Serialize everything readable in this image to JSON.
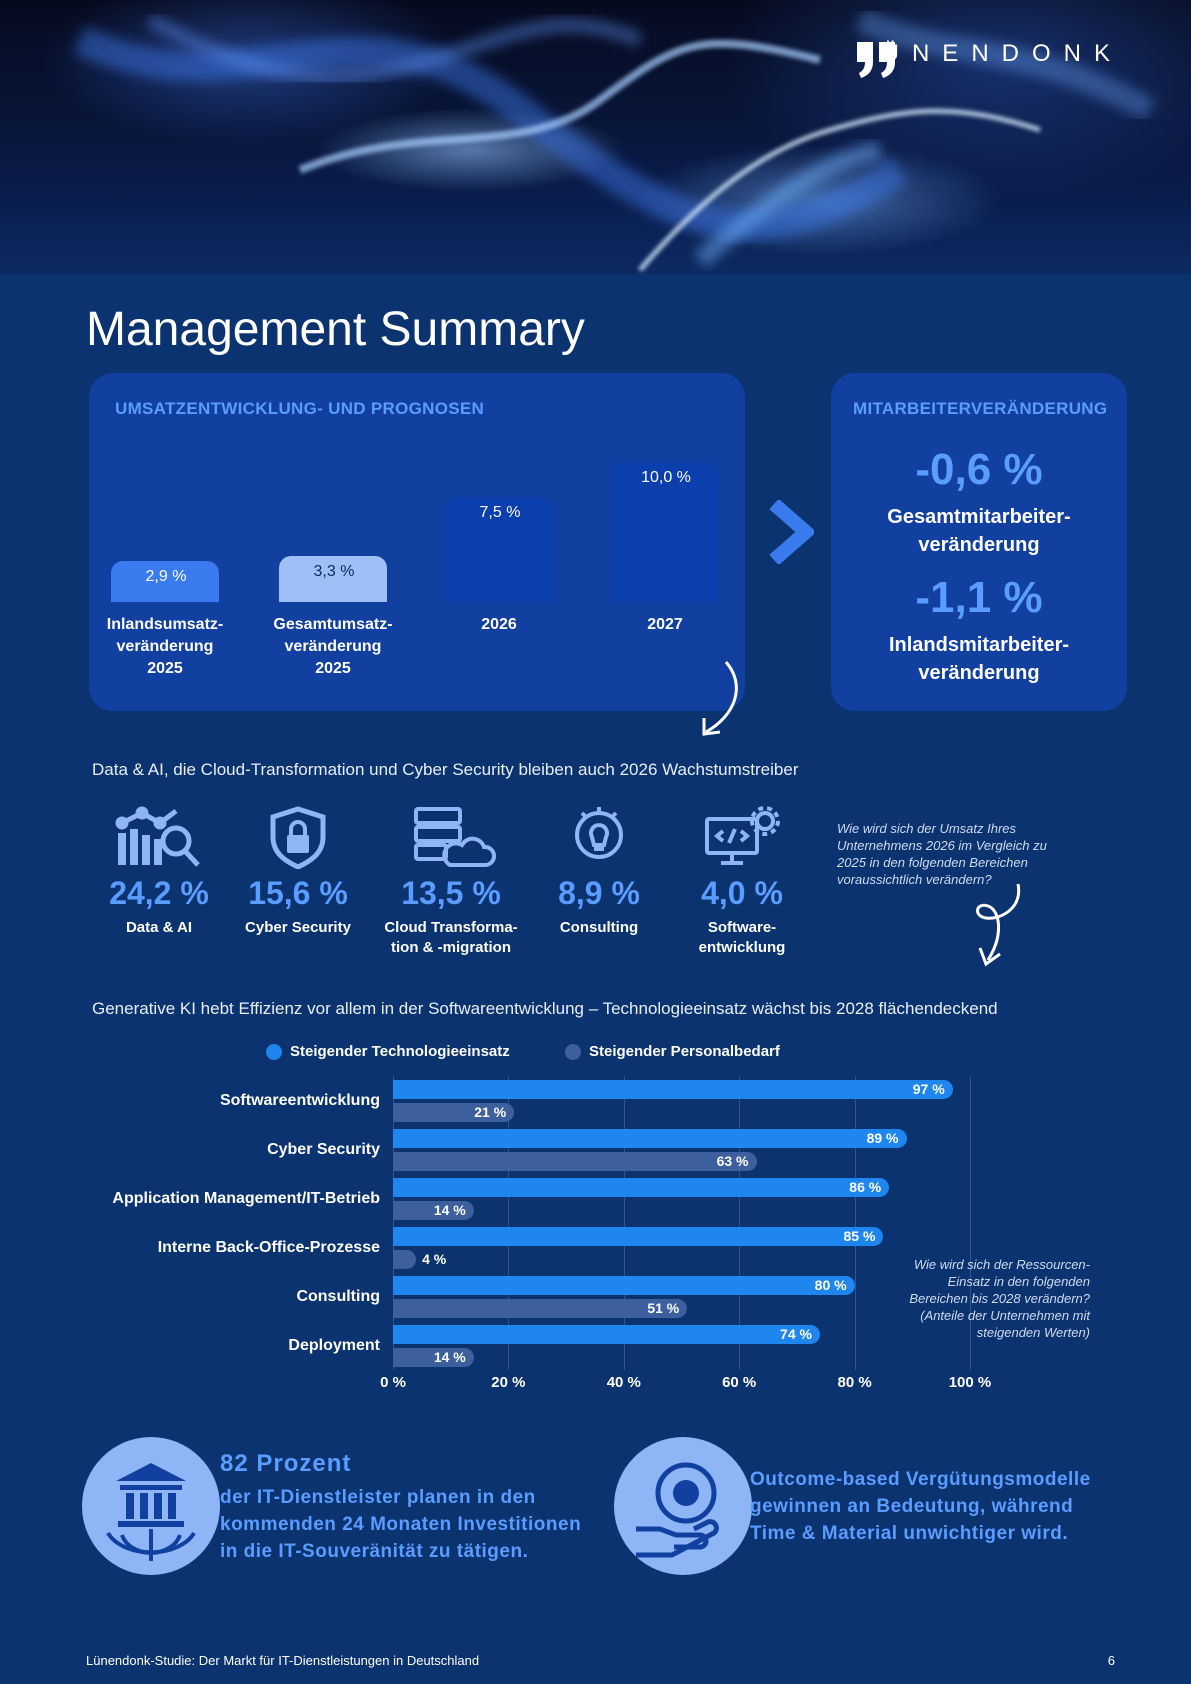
{
  "brand": {
    "name": "LÜNENDONK"
  },
  "page": {
    "title": "Management Summary",
    "number": "6"
  },
  "revenue_panel": {
    "title": "UMSATZENTWICKLUNG- UND PROGNOSEN",
    "bars": [
      {
        "value": "2,9 %",
        "label": "Inlandsumsatz-\nveränderung\n2025",
        "num": 2.9,
        "color": "#3a7bf0"
      },
      {
        "value": "3,3 %",
        "label": "Gesamtumsatz-\nveränderung\n2025",
        "num": 3.3,
        "color": "#9fc0f7"
      },
      {
        "value": "7,5 %",
        "label": "2026",
        "num": 7.5,
        "color": "#0b3fae"
      },
      {
        "value": "10,0 %",
        "label": "2027",
        "num": 10.0,
        "color": "#0b3fae"
      }
    ]
  },
  "employee_panel": {
    "title": "MITARBEITERVERÄNDERUNG",
    "total_value": "-0,6 %",
    "total_label_1": "Gesamtmitarbeiter-",
    "total_label_2": "veränderung",
    "domestic_value": "-1,1 %",
    "domestic_label_1": "Inlandsmitarbeiter-",
    "domestic_label_2": "veränderung"
  },
  "drivers": {
    "heading": "Data & AI, die Cloud-Transformation und Cyber Security bleiben auch 2026 Wachstumstreiber",
    "items": [
      {
        "value": "24,2 %",
        "label": "Data & AI",
        "icon": "data-ai-icon"
      },
      {
        "value": "15,6 %",
        "label": "Cyber Security",
        "icon": "lock-shield-icon"
      },
      {
        "value": "13,5 %",
        "label": "Cloud Transforma-\ntion & -migration",
        "icon": "cloud-server-icon"
      },
      {
        "value": "8,9 %",
        "label": "Consulting",
        "icon": "lightbulb-chat-icon"
      },
      {
        "value": "4,0 %",
        "label": "Software-\nentwicklung",
        "icon": "code-monitor-icon"
      }
    ],
    "note": "Wie wird sich der Umsatz Ihres Unternehmens 2026 im Vergleich zu 2025 in den folgenden Bereichen voraussichtlich verändern?"
  },
  "genai": {
    "heading": "Generative KI hebt Effizienz vor allem in der Softwareentwicklung – Technologieeinsatz wächst bis 2028 flächendeckend",
    "legend": [
      {
        "name": "Steigender Technologieeinsatz",
        "color": "#1f86ef"
      },
      {
        "name": "Steigender Personalbedarf",
        "color": "#3d5f9e"
      }
    ],
    "note": "Wie wird sich der Ressourcen-Einsatz in den folgenden Bereichen bis 2028 verändern? (Anteile der Unternehmen mit steigenden Werten)"
  },
  "chart_data": {
    "type": "bar",
    "orientation": "horizontal",
    "categories": [
      "Softwareentwicklung",
      "Cyber Security",
      "Application Management/IT-Betrieb",
      "Interne Back-Office-Prozesse",
      "Consulting",
      "Deployment"
    ],
    "series": [
      {
        "name": "Steigender Technologieeinsatz",
        "values": [
          97,
          89,
          86,
          85,
          80,
          74
        ],
        "labels": [
          "97 %",
          "89 %",
          "86 %",
          "85 %",
          "80 %",
          "74 %"
        ]
      },
      {
        "name": "Steigender Personalbedarf",
        "values": [
          21,
          63,
          14,
          4,
          51,
          14
        ],
        "labels": [
          "21 %",
          "63 %",
          "14 %",
          "4 %",
          "51 %",
          "14 %"
        ]
      }
    ],
    "xlim": [
      0,
      100
    ],
    "xticks": [
      "0 %",
      "20 %",
      "40 %",
      "60 %",
      "80 %",
      "100 %"
    ],
    "grid": true,
    "legend_position": "top"
  },
  "stats": {
    "left_head": "82 Prozent",
    "left_body_1": "der IT-Dienstleister planen in den",
    "left_body_2": "kommenden 24 Monaten Investitionen",
    "left_body_3": "in die IT-Souveränität zu tätigen.",
    "right_body_1": "Outcome-based Vergütungsmodelle",
    "right_body_2": "gewinnen an Bedeutung, während",
    "right_body_3": "Time & Material unwichtiger wird."
  },
  "footer": {
    "text": "Lünendonk-Studie: Der Markt für IT-Dienstleistungen in Deutschland"
  }
}
